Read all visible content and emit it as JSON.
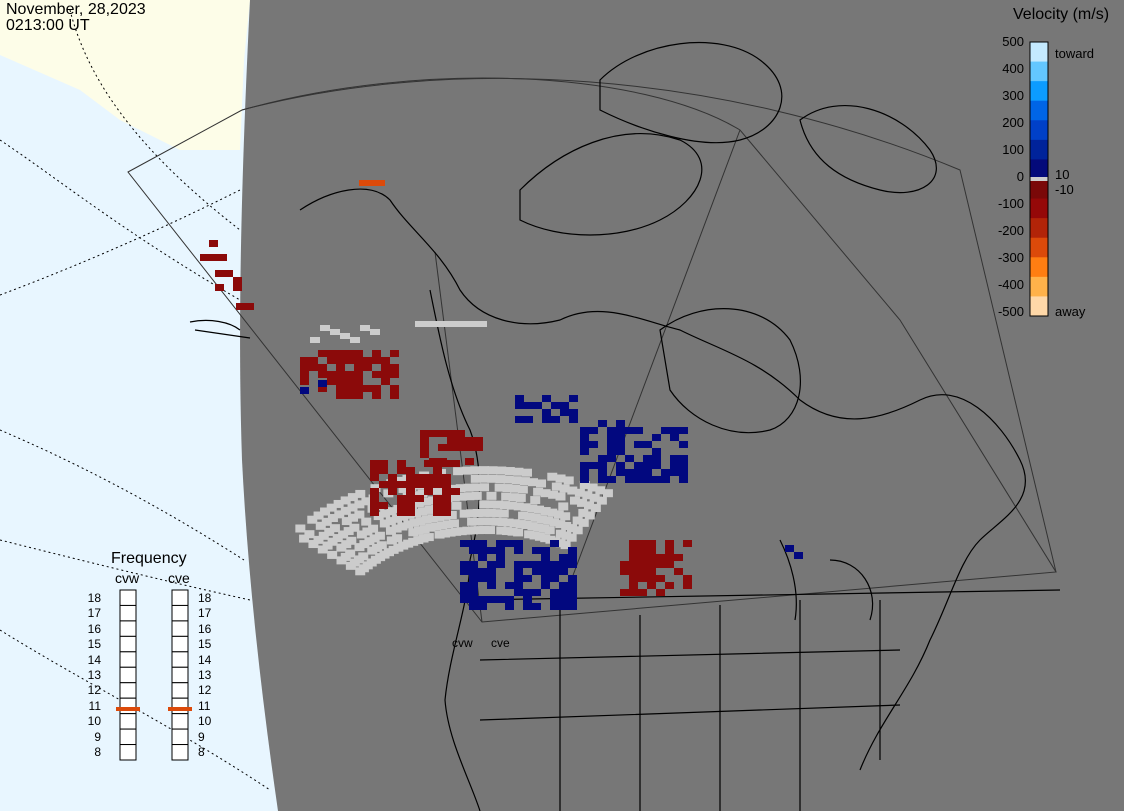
{
  "header": {
    "date": "November, 28,2023",
    "time": "0213:00 UT"
  },
  "velocity_scale": {
    "title": "Velocity (m/s)",
    "ticks": [
      "500",
      "400",
      "300",
      "200",
      "100",
      "0",
      "-100",
      "-200",
      "-300",
      "-400",
      "-500"
    ],
    "small_labels": [
      "10",
      "-10"
    ],
    "toward_label": "toward",
    "away_label": "away",
    "colors": [
      "#c4eaff",
      "#63c7ff",
      "#0c9cff",
      "#0065e6",
      "#0040c8",
      "#00239a",
      "#040a7a",
      "#7a0808",
      "#950808",
      "#b22408",
      "#dc4a0a",
      "#ff7e12",
      "#ffb24a",
      "#ffd8a8"
    ]
  },
  "frequency": {
    "title": "Frequency",
    "radars": [
      "cvw",
      "cve"
    ],
    "ticks": [
      "18",
      "17",
      "16",
      "15",
      "14",
      "13",
      "12",
      "11",
      "10",
      "9",
      "8"
    ],
    "values_mhz": [
      10.8,
      10.8
    ]
  },
  "sites": [
    "cvw",
    "cve"
  ],
  "colors": {
    "ground_scatter": "#cccccc",
    "land": "#777777",
    "ocean": "#e8f6ff",
    "night_terminator": "#fdfde8",
    "low_negative": "#8b0a0a",
    "low_positive": "#02087f"
  }
}
